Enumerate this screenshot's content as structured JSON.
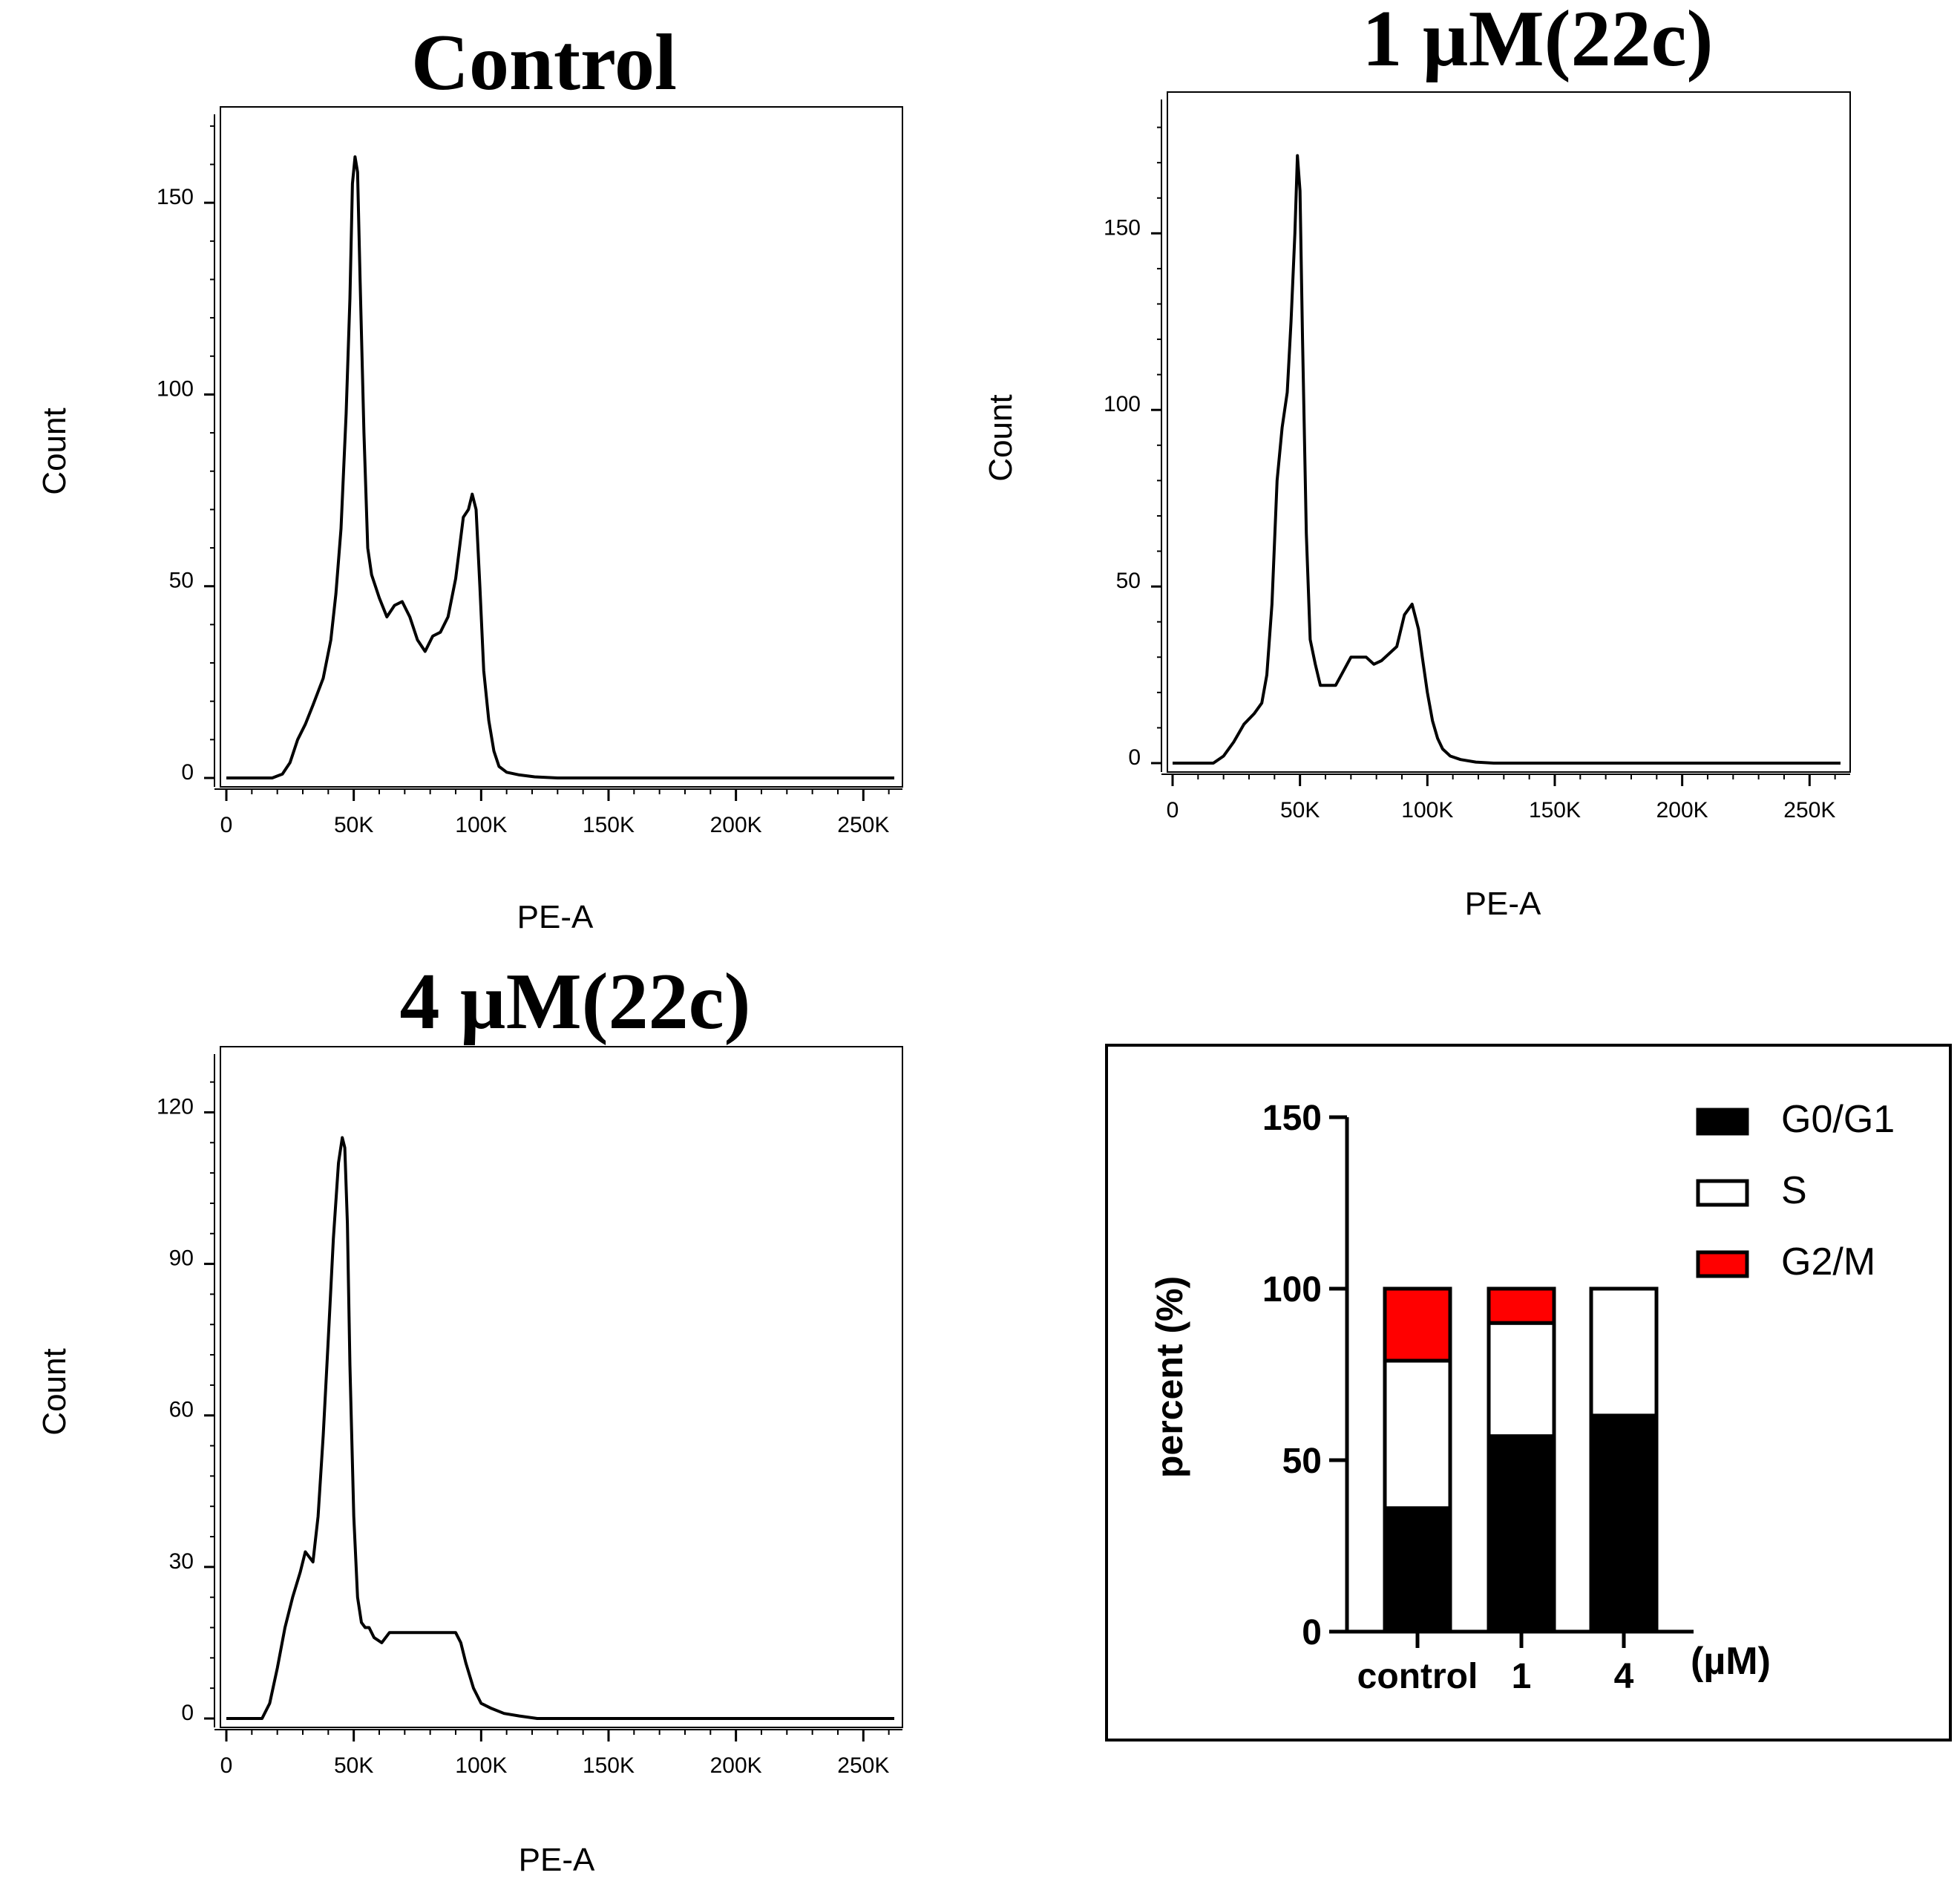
{
  "chart_data": [
    {
      "type": "line",
      "title": "Control",
      "xlabel": "PE-A",
      "ylabel": "Count",
      "xlim": [
        0,
        262144
      ],
      "ylim": [
        0,
        175
      ],
      "xticks": [
        0,
        50000,
        100000,
        150000,
        200000,
        250000
      ],
      "xtick_labels": [
        "0",
        "50K",
        "100K",
        "150K",
        "200K",
        "250K"
      ],
      "yticks": [
        0,
        50,
        100,
        150
      ],
      "ytick_labels": [
        "0",
        "50",
        "100",
        "150"
      ],
      "grid": false,
      "series": [
        {
          "name": "",
          "x": [
            0,
            18000,
            22000,
            25000,
            28000,
            31000,
            34000,
            38000,
            41000,
            43000,
            45000,
            47000,
            48500,
            49500,
            50500,
            51500,
            52500,
            54000,
            55500,
            57000,
            60000,
            63000,
            66000,
            69000,
            72000,
            75000,
            78000,
            81000,
            84000,
            87000,
            90000,
            93000,
            95000,
            96500,
            98000,
            99500,
            101000,
            103000,
            105000,
            107000,
            110000,
            115000,
            121000,
            130000,
            262144
          ],
          "y": [
            0,
            0,
            1,
            4,
            10,
            14,
            19,
            26,
            36,
            48,
            65,
            95,
            125,
            155,
            162,
            158,
            130,
            90,
            60,
            53,
            47,
            42,
            45,
            46,
            42,
            36,
            33,
            37,
            38,
            42,
            52,
            68,
            70,
            74,
            70,
            50,
            28,
            15,
            7,
            3,
            1.5,
            0.8,
            0.3,
            0,
            0
          ]
        }
      ]
    },
    {
      "type": "line",
      "title": "1 µM(22c)",
      "xlabel": "PE-A",
      "ylabel": "Count",
      "xlim": [
        0,
        262144
      ],
      "ylim": [
        0,
        190
      ],
      "xticks": [
        0,
        50000,
        100000,
        150000,
        200000,
        250000
      ],
      "xtick_labels": [
        "0",
        "50K",
        "100K",
        "150K",
        "200K",
        "250K"
      ],
      "yticks": [
        0,
        50,
        100,
        150
      ],
      "ytick_labels": [
        "0",
        "50",
        "100",
        "150"
      ],
      "grid": false,
      "series": [
        {
          "name": "",
          "x": [
            0,
            16000,
            20000,
            24000,
            28000,
            32000,
            35000,
            37000,
            39000,
            41000,
            43000,
            45000,
            46500,
            48000,
            49000,
            50000,
            51000,
            52500,
            54000,
            56000,
            58000,
            61000,
            64000,
            67000,
            70000,
            73000,
            76000,
            79000,
            82000,
            85000,
            88000,
            91000,
            94000,
            96500,
            98000,
            100000,
            102000,
            104000,
            106000,
            109000,
            113000,
            119000,
            126000,
            262144
          ],
          "y": [
            0,
            0,
            2,
            6,
            11,
            14,
            17,
            25,
            45,
            80,
            95,
            105,
            125,
            150,
            172,
            162,
            120,
            65,
            35,
            28,
            22,
            22,
            22,
            26,
            30,
            30,
            30,
            28,
            29,
            31,
            33,
            42,
            45,
            38,
            30,
            20,
            12,
            7,
            4,
            2,
            1,
            0.3,
            0,
            0
          ]
        }
      ]
    },
    {
      "type": "line",
      "title": "4 µM(22c)",
      "xlabel": "PE-A",
      "ylabel": "Count",
      "xlim": [
        0,
        262144
      ],
      "ylim": [
        0,
        133
      ],
      "xticks": [
        0,
        50000,
        100000,
        150000,
        200000,
        250000
      ],
      "xtick_labels": [
        "0",
        "50K",
        "100K",
        "150K",
        "200K",
        "250K"
      ],
      "yticks": [
        0,
        30,
        60,
        90,
        120
      ],
      "ytick_labels": [
        "0",
        "30",
        "60",
        "90",
        "120"
      ],
      "grid": false,
      "series": [
        {
          "name": "",
          "x": [
            0,
            14000,
            17000,
            20000,
            23000,
            26000,
            29000,
            31000,
            32500,
            34000,
            36000,
            38000,
            40000,
            42000,
            44000,
            45500,
            46500,
            47500,
            48500,
            50000,
            51500,
            53000,
            54500,
            56000,
            58000,
            61000,
            64000,
            67000,
            70000,
            75000,
            80000,
            85000,
            90000,
            92000,
            94000,
            97000,
            100000,
            104000,
            109000,
            115000,
            122000,
            262144
          ],
          "y": [
            0,
            0,
            3,
            10,
            18,
            24,
            29,
            33,
            32,
            31,
            40,
            56,
            75,
            95,
            110,
            115,
            113,
            98,
            70,
            40,
            24,
            19,
            18,
            18,
            16,
            15,
            17,
            17,
            17,
            17,
            17,
            17,
            17,
            15,
            11,
            6,
            3,
            2,
            1,
            0.5,
            0,
            0
          ]
        }
      ]
    },
    {
      "type": "bar",
      "stacked": true,
      "categories": [
        "control",
        "1",
        "4"
      ],
      "x_unit_label": "(µM)",
      "ylabel": "percent (%)",
      "ylim": [
        0,
        150
      ],
      "yticks": [
        0,
        50,
        100,
        150
      ],
      "ytick_labels": [
        "0",
        "50",
        "100",
        "150"
      ],
      "legend_position": "top-right",
      "series": [
        {
          "name": "G0/G1",
          "values": [
            36,
            57,
            63
          ],
          "color": "#000000"
        },
        {
          "name": "S",
          "values": [
            43,
            33,
            37
          ],
          "color": "#ffffff"
        },
        {
          "name": "G2/M",
          "values": [
            21,
            10,
            0
          ],
          "color": "#ff0000"
        }
      ]
    }
  ]
}
